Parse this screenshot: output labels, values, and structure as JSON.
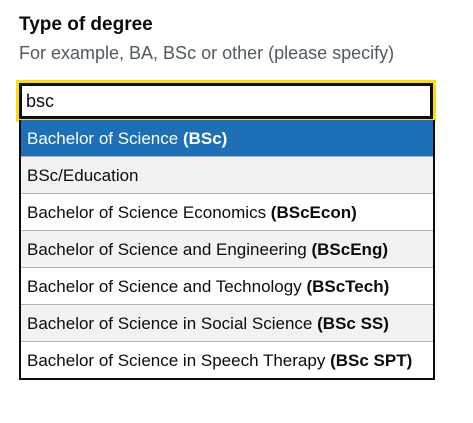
{
  "field": {
    "label": "Type of degree",
    "hint": "For example, BA, BSc or other (please specify)",
    "value": "bsc"
  },
  "options": [
    {
      "name": "Bachelor of Science",
      "abbr": "(BSc)",
      "highlighted": true
    },
    {
      "name": "BSc/Education",
      "abbr": ""
    },
    {
      "name": "Bachelor of Science Economics",
      "abbr": "(BScEcon)"
    },
    {
      "name": "Bachelor of Science and Engineering",
      "abbr": "(BScEng)"
    },
    {
      "name": "Bachelor of Science and Technology",
      "abbr": "(BScTech)"
    },
    {
      "name": "Bachelor of Science in Social Science",
      "abbr": "(BSc SS)"
    },
    {
      "name": "Bachelor of Science in Speech Therapy",
      "abbr": "(BSc SPT)"
    }
  ],
  "colors": {
    "focus": "#ffdd00",
    "highlight": "#1d70b8",
    "odd_row": "#f3f2f1",
    "text": "#0b0c0c",
    "hint": "#505a5f"
  }
}
